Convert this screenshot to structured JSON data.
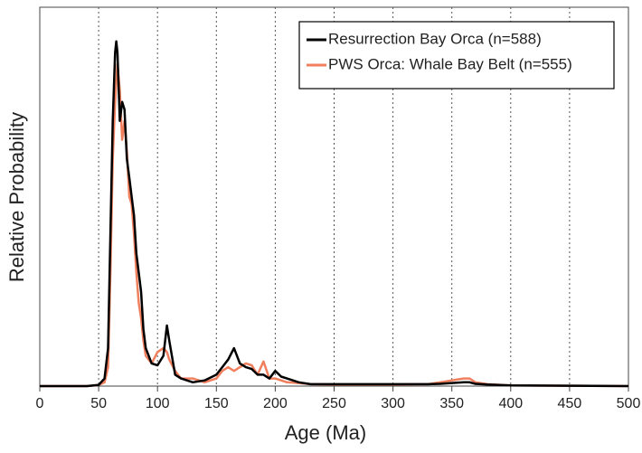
{
  "chart_data": {
    "type": "line",
    "xlabel": "Age (Ma)",
    "ylabel": "Relative Probability",
    "x": [
      0,
      40,
      50,
      55,
      58,
      60,
      62,
      64,
      65,
      66,
      68,
      70,
      72,
      74,
      76,
      78,
      80,
      82,
      84,
      86,
      88,
      90,
      95,
      100,
      105,
      108,
      110,
      115,
      120,
      130,
      140,
      150,
      155,
      160,
      165,
      170,
      175,
      180,
      185,
      190,
      195,
      200,
      205,
      210,
      220,
      230,
      250,
      300,
      330,
      340,
      350,
      360,
      365,
      370,
      380,
      400,
      450,
      500
    ],
    "series": [
      {
        "name": "Resurrection Bay Orca (n=588)",
        "color": "#000000",
        "values": [
          0,
          0,
          0.003,
          0.02,
          0.1,
          0.4,
          0.7,
          0.88,
          0.91,
          0.88,
          0.7,
          0.75,
          0.73,
          0.6,
          0.55,
          0.5,
          0.45,
          0.35,
          0.3,
          0.25,
          0.15,
          0.1,
          0.06,
          0.055,
          0.08,
          0.16,
          0.12,
          0.03,
          0.02,
          0.01,
          0.015,
          0.03,
          0.05,
          0.07,
          0.1,
          0.06,
          0.05,
          0.045,
          0.03,
          0.03,
          0.02,
          0.04,
          0.025,
          0.02,
          0.01,
          0.005,
          0.005,
          0.005,
          0.005,
          0.006,
          0.008,
          0.01,
          0.01,
          0.006,
          0.004,
          0.002,
          0.001,
          0
        ]
      },
      {
        "name": "PWS Orca: Whale Bay Belt (n=555)",
        "color": "#f07f5e",
        "values": [
          0,
          0,
          0.003,
          0.01,
          0.05,
          0.3,
          0.6,
          0.75,
          0.8,
          0.85,
          0.78,
          0.65,
          0.7,
          0.62,
          0.5,
          0.48,
          0.4,
          0.3,
          0.22,
          0.18,
          0.12,
          0.08,
          0.06,
          0.09,
          0.1,
          0.09,
          0.07,
          0.04,
          0.02,
          0.02,
          0.01,
          0.02,
          0.04,
          0.05,
          0.04,
          0.05,
          0.06,
          0.055,
          0.03,
          0.065,
          0.02,
          0.02,
          0.015,
          0.01,
          0.008,
          0.005,
          0.004,
          0.004,
          0.005,
          0.01,
          0.015,
          0.02,
          0.02,
          0.01,
          0.005,
          0.002,
          0.001,
          0
        ]
      }
    ],
    "xlim": [
      0,
      500
    ],
    "xticks": [
      0,
      50,
      100,
      150,
      200,
      250,
      300,
      350,
      400,
      450,
      500
    ],
    "ylim": [
      0,
      1
    ],
    "grid": true,
    "legend": "upper-right"
  }
}
